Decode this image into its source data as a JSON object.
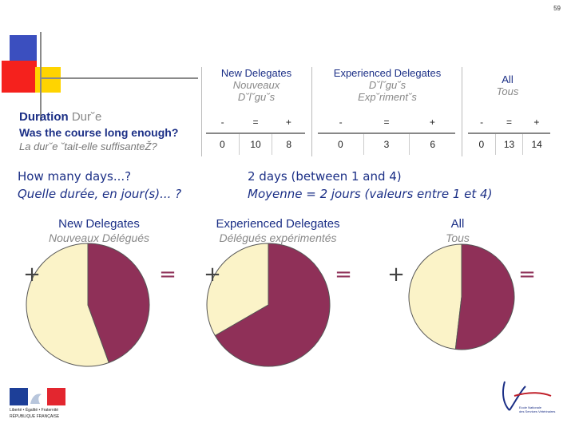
{
  "slide_number": "59",
  "duration": {
    "label_en": "Duration",
    "label_fr": "Dur˘e"
  },
  "question": {
    "en": "Was the course long enough?",
    "fr": "La dur˘e  ˘tait-elle suffisanteŽ?"
  },
  "table": {
    "groups": [
      {
        "title_en": "New Delegates",
        "title_fr_line1": "Nouveaux",
        "title_fr_line2": "D˘l˘gu˘s",
        "headers": [
          "-",
          "=",
          "+"
        ],
        "values": [
          0,
          10,
          8
        ]
      },
      {
        "title_en": "Experienced Delegates",
        "title_fr_line1": "D˘l˘gu˘s",
        "title_fr_line2": "Exp˘riment˘s",
        "headers": [
          "-",
          "=",
          "+"
        ],
        "values": [
          0,
          3,
          6
        ]
      },
      {
        "title_en": "All",
        "title_fr_line1": "Tous",
        "title_fr_line2": "",
        "headers": [
          "-",
          "=",
          "+"
        ],
        "values": [
          0,
          13,
          14
        ]
      }
    ]
  },
  "days": {
    "q_en": "How many days...?",
    "q_fr": "Quelle durée, en jour(s)... ?",
    "a_en": "2 days (between 1 and 4)",
    "a_fr": "Moyenne = 2 jours (valeurs entre 1 et 4)"
  },
  "colors": {
    "plus": "#8f3058",
    "equal": "#fbf3c8",
    "title_blue": "#1b2f86"
  },
  "chart_data": [
    {
      "type": "pie",
      "title": "New Delegates",
      "subtitle": "Nouveaux Délégués",
      "categories": [
        "+",
        "="
      ],
      "values": [
        8,
        10
      ],
      "labels": {
        "plus": "+",
        "equal": "="
      }
    },
    {
      "type": "pie",
      "title": "Experienced Delegates",
      "subtitle": "Délégués expérimentés",
      "categories": [
        "+",
        "="
      ],
      "values": [
        6,
        3
      ],
      "labels": {
        "plus": "+",
        "equal": "="
      }
    },
    {
      "type": "pie",
      "title": "All",
      "subtitle": "Tous",
      "categories": [
        "+",
        "="
      ],
      "values": [
        14,
        13
      ],
      "labels": {
        "plus": "+",
        "equal": "="
      }
    }
  ],
  "footer": {
    "motto": "Liberté • Égalité • Fraternité",
    "republic": "RÉPUBLIQUE FRANÇAISE",
    "school_line1": "Ecole Nationale",
    "school_line2": "des Services Vétérinaires"
  }
}
